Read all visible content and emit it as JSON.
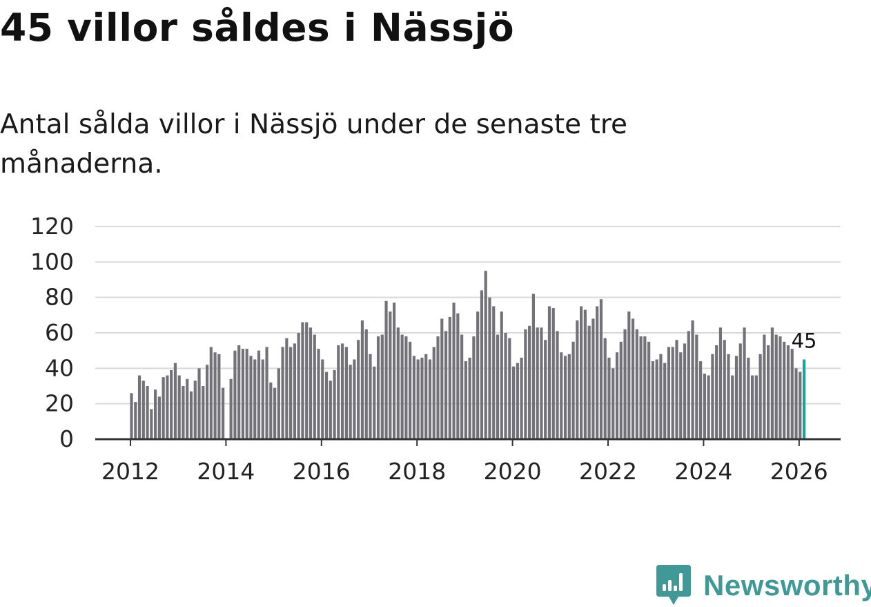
{
  "header": {
    "title": "45 villor såldes i Nässjö",
    "subtitle": "Antal sålda villor i Nässjö under de senaste tre månaderna."
  },
  "brand": {
    "name": "Newsworthy",
    "icon": "newsworthy-logo-icon"
  },
  "colors": {
    "bar": "#737278",
    "highlight": "#1aa39a",
    "grid": "#d9d9d9",
    "axis": "#333333",
    "brand": "#3f9a97"
  },
  "chart_data": {
    "type": "bar",
    "title": "45 villor såldes i Nässjö",
    "xlabel": "",
    "ylabel": "",
    "ylim": [
      0,
      120
    ],
    "yticks": [
      0,
      20,
      40,
      60,
      80,
      100,
      120
    ],
    "x_start": 2012.0,
    "x_step": 0.08333,
    "xticks": [
      2012,
      2014,
      2016,
      2018,
      2020,
      2022,
      2024,
      2026
    ],
    "xtick_labels": [
      "2012",
      "2014",
      "2016",
      "2018",
      "2020",
      "2022",
      "2024",
      "2026"
    ],
    "grid": true,
    "values": [
      26,
      21,
      36,
      33,
      30,
      17,
      28,
      24,
      35,
      36,
      39,
      43,
      36,
      30,
      34,
      27,
      33,
      40,
      30,
      42,
      52,
      49,
      48,
      29,
      null,
      34,
      50,
      53,
      51,
      51,
      47,
      45,
      50,
      45,
      52,
      32,
      29,
      40,
      52,
      57,
      52,
      54,
      60,
      66,
      66,
      63,
      59,
      51,
      45,
      38,
      33,
      39,
      53,
      54,
      52,
      42,
      45,
      56,
      67,
      62,
      48,
      41,
      58,
      59,
      78,
      72,
      77,
      63,
      59,
      58,
      55,
      47,
      45,
      46,
      48,
      45,
      52,
      58,
      68,
      61,
      69,
      77,
      71,
      59,
      44,
      46,
      58,
      72,
      84,
      95,
      80,
      75,
      59,
      72,
      60,
      57,
      41,
      43,
      46,
      62,
      64,
      82,
      63,
      63,
      56,
      75,
      74,
      61,
      49,
      47,
      48,
      55,
      67,
      75,
      73,
      64,
      68,
      75,
      79,
      57,
      46,
      40,
      49,
      55,
      62,
      72,
      68,
      62,
      58,
      58,
      55,
      44,
      45,
      48,
      43,
      52,
      52,
      56,
      49,
      54,
      61,
      67,
      59,
      44,
      37,
      36,
      48,
      53,
      63,
      56,
      48,
      36,
      47,
      54,
      63,
      46,
      36,
      36,
      48,
      59,
      53,
      63,
      59,
      58,
      55,
      53,
      51,
      40,
      38,
      45
    ],
    "highlight_index": 169,
    "annotation": {
      "label": "45",
      "index": 169
    }
  }
}
